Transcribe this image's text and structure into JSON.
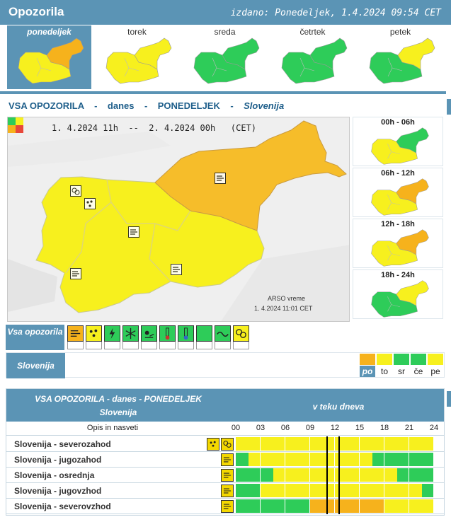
{
  "header": {
    "title": "Opozorila",
    "issued": "izdano: Ponedeljek, 1.4.2024 09:54 CET"
  },
  "colors": {
    "accent": "#5b94b5",
    "green": "#2ecc59",
    "yellow": "#f7f01e",
    "orange": "#f6b21c",
    "red": "#e8473a",
    "title_text": "#1f5f8b"
  },
  "days": [
    {
      "label": "ponedeljek",
      "active": true,
      "west": "yellow",
      "east": "orange"
    },
    {
      "label": "torek",
      "active": false,
      "west": "yellow",
      "east": "yellow"
    },
    {
      "label": "sreda",
      "active": false,
      "west": "green",
      "east": "green"
    },
    {
      "label": "četrtek",
      "active": false,
      "west": "green",
      "east": "green"
    },
    {
      "label": "petek",
      "active": false,
      "west": "green",
      "east": "yellow"
    }
  ],
  "title_row": {
    "part1": "VSA OPOZORILA",
    "dash1": "-",
    "part2": "danes",
    "dash2": "-",
    "part3": "PONEDELJEK",
    "dash3": "-",
    "region": "Slovenija"
  },
  "main_map": {
    "from": "1. 4.2024 11h",
    "sep": "--",
    "to": "2. 4.2024 00h",
    "tz": "(CET)",
    "credit": "ARSO vreme",
    "credit_time": "1. 4.2024  11:01 CET"
  },
  "periods": [
    {
      "label": "00h - 06h",
      "west": "yellow",
      "east": "green"
    },
    {
      "label": "06h - 12h",
      "west": "yellow",
      "east": "orange"
    },
    {
      "label": "12h - 18h",
      "west": "yellow",
      "east": "orange"
    },
    {
      "label": "18h - 24h",
      "west": "green",
      "east": "yellow"
    }
  ],
  "types_label": "Vsa opozorila",
  "types": [
    {
      "icon": "wind-icon",
      "state": "orange"
    },
    {
      "icon": "rain-icon",
      "state": "yellow"
    },
    {
      "icon": "thunder-icon",
      "state": "green"
    },
    {
      "icon": "snow-icon",
      "state": "green"
    },
    {
      "icon": "ice-icon",
      "state": "green"
    },
    {
      "icon": "heat-icon",
      "state": "green"
    },
    {
      "icon": "cold-icon",
      "state": "green"
    },
    {
      "icon": "fog-icon",
      "state": "green"
    },
    {
      "icon": "coastal-icon",
      "state": "green"
    },
    {
      "icon": "flood-icon",
      "state": "yellow"
    }
  ],
  "region_bar": {
    "label": "Slovenija",
    "days": [
      {
        "code": "po",
        "color": "orange",
        "active": true
      },
      {
        "code": "to",
        "color": "yellow",
        "active": false
      },
      {
        "code": "sr",
        "color": "green",
        "active": false
      },
      {
        "code": "če",
        "color": "green",
        "active": false
      },
      {
        "code": "pe",
        "color": "yellow",
        "active": false
      }
    ]
  },
  "table": {
    "head_left1": "VSA OPOZORILA - danes - PONEDELJEK",
    "head_left2": "Slovenija",
    "head_right": "v teku dneva",
    "sub_label": "Opis in nasveti",
    "ticks": [
      "00",
      "03",
      "06",
      "09",
      "12",
      "15",
      "18",
      "21",
      "24"
    ],
    "now_hours": [
      11,
      12.4
    ],
    "rows": [
      {
        "name": "Slovenija - severozahod",
        "icons": [
          "rain-icon",
          "flood-icon"
        ],
        "segments": [
          "yellow",
          "yellow",
          "yellow",
          "yellow",
          "yellow",
          "yellow",
          "yellow",
          "yellow"
        ]
      },
      {
        "name": "Slovenija - jugozahod",
        "icons": [
          "wind-icon"
        ],
        "segments": [
          "green-yellow",
          "yellow",
          "yellow",
          "yellow",
          "yellow",
          "yellow-green",
          "green",
          "green"
        ]
      },
      {
        "name": "Slovenija - osrednja",
        "icons": [
          "wind-icon"
        ],
        "segments": [
          "green",
          "green-yellow",
          "yellow",
          "yellow",
          "yellow",
          "yellow",
          "yellow-green",
          "green"
        ]
      },
      {
        "name": "Slovenija - jugovzhod",
        "icons": [
          "wind-icon"
        ],
        "segments": [
          "green",
          "yellow",
          "yellow",
          "yellow",
          "yellow",
          "yellow",
          "yellow",
          "yellow-green"
        ]
      },
      {
        "name": "Slovenija - severovzhod",
        "icons": [
          "wind-icon"
        ],
        "segments": [
          "green",
          "green",
          "green",
          "orange",
          "orange",
          "orange",
          "yellow",
          "yellow"
        ]
      }
    ]
  }
}
